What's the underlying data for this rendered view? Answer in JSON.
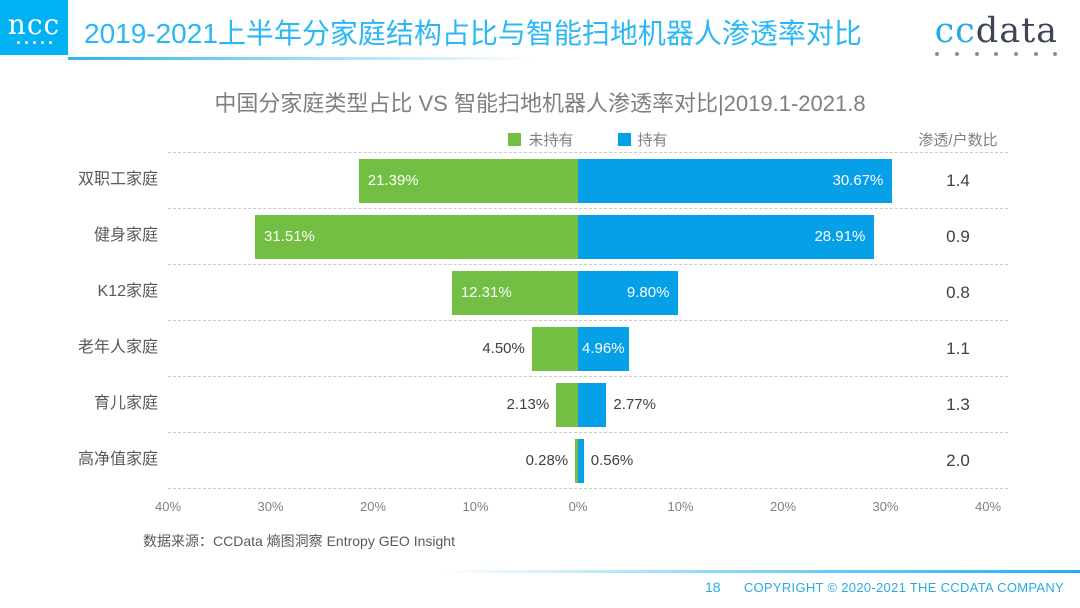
{
  "header": {
    "logo_text": "ncc",
    "title": "2019-2021上半年分家庭结构占比与智能扫地机器人渗透率对比",
    "brand": {
      "cc": "cc",
      "data": "data"
    }
  },
  "chart_data": {
    "type": "bar",
    "variant": "diverging-horizontal",
    "title": "中国分家庭类型占比 VS 智能扫地机器人渗透率对比|2019.1-2021.8",
    "categories": [
      "双职工家庭",
      "健身家庭",
      "K12家庭",
      "老年人家庭",
      "育儿家庭",
      "高净值家庭"
    ],
    "series": [
      {
        "name": "未持有",
        "side": "left",
        "color": "#72BF44",
        "values": [
          21.39,
          31.51,
          12.31,
          4.5,
          2.13,
          0.28
        ],
        "labels": [
          "21.39%",
          "31.51%",
          "12.31%",
          "4.50%",
          "2.13%",
          "0.28%"
        ]
      },
      {
        "name": "持有",
        "side": "right",
        "color": "#05A0E8",
        "values": [
          30.67,
          28.91,
          9.8,
          4.96,
          2.77,
          0.56
        ],
        "labels": [
          "30.67%",
          "28.91%",
          "9.80%",
          "4.96%",
          "2.77%",
          "0.56%"
        ]
      }
    ],
    "ratio_column": {
      "header": "渗透/户数比",
      "values": [
        "1.4",
        "0.9",
        "0.8",
        "1.1",
        "1.3",
        "2.0"
      ]
    },
    "x_ticks": [
      "40%",
      "30%",
      "20%",
      "10%",
      "0%",
      "10%",
      "20%",
      "30%",
      "40%"
    ],
    "x_max": 40,
    "legend_position": "top-center",
    "grid": "dashed-horizontal-row-separators"
  },
  "source_note": "数据来源：CCData 熵图洞察 Entropy GEO Insight",
  "footer": {
    "page_number": "18",
    "copyright": "COPYRIGHT © 2020-2021 THE CCDATA COMPANY"
  },
  "colors": {
    "accent_cyan": "#29B6F6",
    "not_owned_green": "#72BF44",
    "owned_blue": "#05A0E8"
  }
}
